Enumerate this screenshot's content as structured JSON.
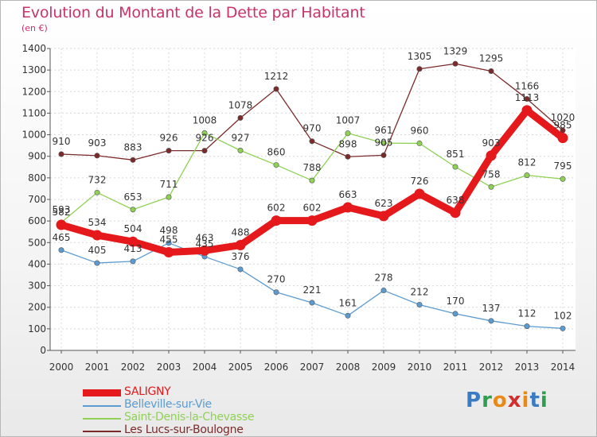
{
  "title": "Evolution du Montant de la Dette par Habitant",
  "subtitle": "(en €)",
  "logo": {
    "text": "Proxiti",
    "colors": [
      "#3a7cc4",
      "#2f9f4f",
      "#e98a17",
      "#d22e2e",
      "#e98a17",
      "#3a7cc4",
      "#2f9f4f"
    ]
  },
  "chart_data": {
    "type": "line",
    "title": "Evolution du Montant de la Dette par Habitant",
    "subtitle": "(en €)",
    "x": [
      "2000",
      "2001",
      "2002",
      "2003",
      "2004",
      "2005",
      "2006",
      "2007",
      "2008",
      "2009",
      "2010",
      "2011",
      "2012",
      "2013",
      "2014"
    ],
    "ylim": [
      0,
      1400
    ],
    "yticks": [
      0,
      100,
      200,
      300,
      400,
      500,
      600,
      700,
      800,
      900,
      1000,
      1100,
      1200,
      1300,
      1400
    ],
    "grid": true,
    "legend_position": "bottom-left",
    "series": [
      {
        "name": "SALIGNY",
        "color": "#e5191c",
        "values": [
          582,
          534,
          504,
          455,
          463,
          488,
          602,
          602,
          663,
          623,
          726,
          638,
          903,
          1113,
          985
        ],
        "labels": [
          "582",
          "534",
          "504",
          "455",
          "463",
          "488",
          "602",
          "602",
          "663",
          "623",
          "726",
          "638",
          "903",
          "1113",
          "985"
        ]
      },
      {
        "name": "Belleville-sur-Vie",
        "color": "#5b9bd0",
        "values": [
          465,
          405,
          413,
          498,
          435,
          376,
          270,
          221,
          161,
          278,
          212,
          170,
          137,
          112,
          102
        ],
        "labels": [
          "465",
          "405",
          "413",
          "498",
          "435",
          "376",
          "270",
          "221",
          "161",
          "278",
          "212",
          "170",
          "137",
          "112",
          "102"
        ]
      },
      {
        "name": "Saint-Denis-la-Chevasse",
        "color": "#8fd155",
        "values": [
          593,
          732,
          653,
          711,
          1008,
          927,
          860,
          788,
          1007,
          961,
          960,
          851,
          758,
          812,
          795
        ],
        "labels": [
          "593",
          "732",
          "653",
          "711",
          "1008",
          "927",
          "860",
          "788",
          "1007",
          "961",
          "960",
          "851",
          "758",
          "812",
          "795"
        ]
      },
      {
        "name": "Les Lucs-sur-Boulogne",
        "color": "#7b2a2a",
        "values": [
          910,
          903,
          883,
          926,
          926,
          1078,
          1212,
          970,
          898,
          905,
          1305,
          1329,
          1295,
          1166,
          1020
        ],
        "labels": [
          "910",
          "903",
          "883",
          "926",
          "926",
          "1078",
          "1212",
          "970",
          "898",
          "905",
          "1305",
          "1329",
          "1295",
          "1166",
          "1020"
        ]
      }
    ]
  }
}
